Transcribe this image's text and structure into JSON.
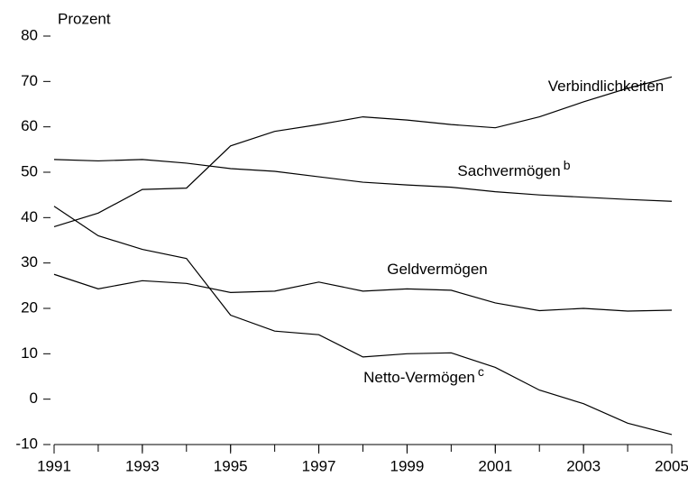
{
  "chart_data": {
    "type": "line",
    "y_label": "Prozent",
    "x": [
      1991,
      1992,
      1993,
      1994,
      1995,
      1996,
      1997,
      1998,
      1999,
      2000,
      2001,
      2002,
      2003,
      2004,
      2005
    ],
    "xlim": [
      1991,
      2005
    ],
    "xticks": [
      1991,
      1993,
      1995,
      1997,
      1999,
      2001,
      2003,
      2005
    ],
    "ylim": [
      -10,
      80
    ],
    "yticks": [
      -10,
      0,
      10,
      20,
      30,
      40,
      50,
      60,
      70,
      80
    ],
    "series": [
      {
        "name": "Verbindlichkeiten",
        "color": "#000000",
        "values": [
          38,
          41,
          46.2,
          46.5,
          55.8,
          59,
          60.5,
          62.2,
          61.5,
          60.5,
          59.8,
          62.2,
          65.5,
          68.5,
          71
        ]
      },
      {
        "name": "Sachvermögen",
        "note": "b",
        "color": "#000000",
        "values": [
          52.8,
          52.5,
          52.8,
          52,
          50.8,
          50.2,
          49,
          47.8,
          47.2,
          46.7,
          45.7,
          45,
          44.5,
          44,
          43.6
        ]
      },
      {
        "name": "Geldvermögen",
        "color": "#000000",
        "values": [
          27.5,
          24.3,
          26.1,
          25.5,
          23.5,
          23.8,
          25.8,
          23.8,
          24.3,
          24,
          21.2,
          19.5,
          20,
          19.4,
          19.6
        ]
      },
      {
        "name": "Netto-Vermögen",
        "note": "c",
        "color": "#000000",
        "values": [
          42.5,
          36,
          33,
          31,
          18.5,
          15,
          14.2,
          9.3,
          10,
          10.2,
          7,
          2,
          -1,
          -5.3,
          -7.8
        ]
      }
    ]
  }
}
